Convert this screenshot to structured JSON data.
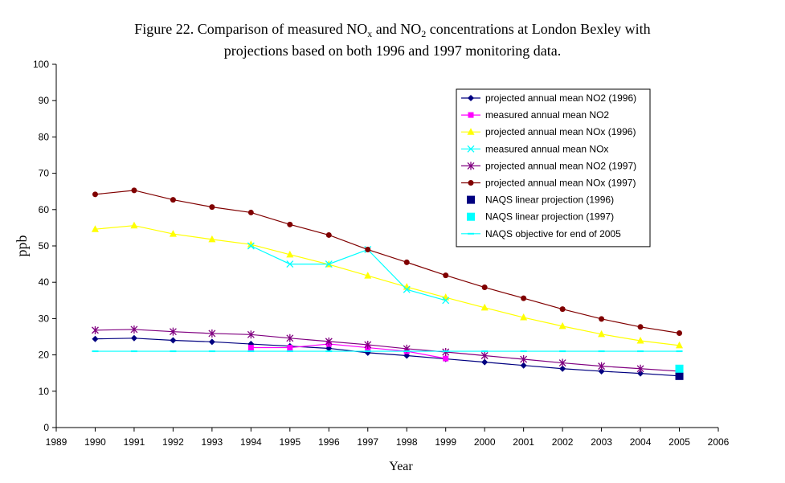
{
  "chart_data": {
    "type": "line",
    "title_parts": [
      "Figure 22. Comparison of measured NO",
      "x",
      " and NO",
      "2",
      " concentrations at London Bexley with"
    ],
    "title_line2": "projections based on both 1996 and 1997 monitoring data.",
    "xlabel": "Year",
    "ylabel": "ppb",
    "xlim": [
      1989,
      2006
    ],
    "ylim": [
      0,
      100
    ],
    "xticks": [
      1989,
      1990,
      1991,
      1992,
      1993,
      1994,
      1995,
      1996,
      1997,
      1998,
      1999,
      2000,
      2001,
      2002,
      2003,
      2004,
      2005,
      2006
    ],
    "yticks": [
      0,
      10,
      20,
      30,
      40,
      50,
      60,
      70,
      80,
      90,
      100
    ],
    "grid": false,
    "legend_position": "top-right",
    "series": [
      {
        "name": "projected annual mean NO2 (1996)",
        "color": "#000080",
        "marker": "diamond",
        "line": true,
        "x": [
          1990,
          1991,
          1992,
          1993,
          1994,
          1995,
          1996,
          1997,
          1998,
          1999,
          2000,
          2001,
          2002,
          2003,
          2004,
          2005
        ],
        "y": [
          24.4,
          24.6,
          24.0,
          23.6,
          23.0,
          22.4,
          21.8,
          20.6,
          19.8,
          18.9,
          18.0,
          17.1,
          16.2,
          15.5,
          14.9,
          14.2
        ]
      },
      {
        "name": "measured annual mean NO2",
        "color": "#FF00FF",
        "marker": "square",
        "line": true,
        "x": [
          1994,
          1995,
          1996,
          1997,
          1998,
          1999
        ],
        "y": [
          22.0,
          22.0,
          23.0,
          22.0,
          21.0,
          19.0
        ]
      },
      {
        "name": "projected annual mean NOx (1996)",
        "color": "#FFFF00",
        "marker": "triangle",
        "line": true,
        "x": [
          1990,
          1991,
          1992,
          1993,
          1994,
          1995,
          1996,
          1997,
          1998,
          1999,
          2000,
          2001,
          2002,
          2003,
          2004,
          2005
        ],
        "y": [
          54.6,
          55.6,
          53.3,
          51.8,
          50.4,
          47.6,
          44.9,
          41.8,
          38.7,
          35.8,
          33.0,
          30.3,
          27.9,
          25.7,
          23.9,
          22.6
        ]
      },
      {
        "name": "measured annual mean NOx",
        "color": "#00FFFF",
        "marker": "x",
        "line": true,
        "x": [
          1994,
          1995,
          1996,
          1997,
          1998,
          1999
        ],
        "y": [
          50.0,
          45.0,
          45.0,
          49.0,
          38.0,
          35.0
        ]
      },
      {
        "name": "projected annual mean NO2 (1997)",
        "color": "#800080",
        "marker": "star",
        "line": true,
        "x": [
          1990,
          1991,
          1992,
          1993,
          1994,
          1995,
          1996,
          1997,
          1998,
          1999,
          2000,
          2001,
          2002,
          2003,
          2004,
          2005
        ],
        "y": [
          26.8,
          27.0,
          26.4,
          25.9,
          25.6,
          24.6,
          23.7,
          22.8,
          21.7,
          20.8,
          19.8,
          18.8,
          17.8,
          16.9,
          16.2,
          15.5
        ]
      },
      {
        "name": "projected annual mean NOx (1997)",
        "color": "#800000",
        "marker": "circle",
        "line": true,
        "x": [
          1990,
          1991,
          1992,
          1993,
          1994,
          1995,
          1996,
          1997,
          1998,
          1999,
          2000,
          2001,
          2002,
          2003,
          2004,
          2005
        ],
        "y": [
          64.2,
          65.3,
          62.7,
          60.7,
          59.2,
          55.9,
          53.0,
          49.0,
          45.5,
          41.9,
          38.6,
          35.6,
          32.6,
          29.9,
          27.7,
          26.0
        ]
      },
      {
        "name": "NAQS linear projection (1996)",
        "color": "#000080",
        "marker": "bigsquare",
        "line": false,
        "x": [
          2005
        ],
        "y": [
          14.2
        ]
      },
      {
        "name": "NAQS linear projection (1997)",
        "color": "#00FFFF",
        "marker": "bigsquare",
        "line": false,
        "x": [
          2005
        ],
        "y": [
          16.2
        ]
      },
      {
        "name": "NAQS objective for end of 2005",
        "color": "#00FFFF",
        "marker": "dash",
        "line": true,
        "x": [
          1990,
          1991,
          1992,
          1993,
          1994,
          1995,
          1996,
          1997,
          1998,
          1999,
          2000,
          2001,
          2002,
          2003,
          2004,
          2005
        ],
        "y": [
          21,
          21,
          21,
          21,
          21,
          21,
          21,
          21,
          21,
          21,
          21,
          21,
          21,
          21,
          21,
          21
        ]
      }
    ]
  }
}
